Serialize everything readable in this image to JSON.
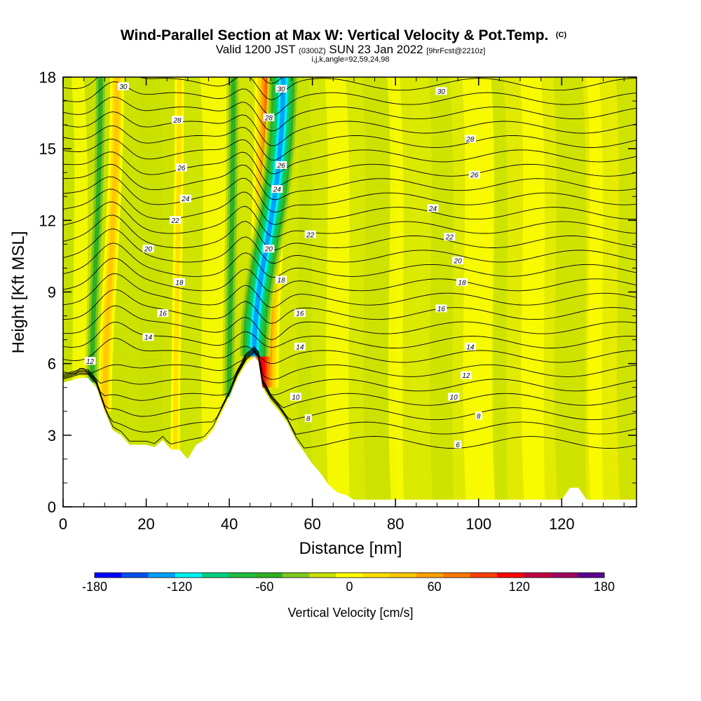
{
  "title": {
    "main": "Wind-Parallel Section at Max W: Vertical Velocity & Pot.Temp.",
    "copyright": "(C)",
    "sub_pre": "Valid 1200 JST ",
    "sub_zulu": "(0300Z)",
    "sub_mid": " SUN 23 Jan 2022 ",
    "sub_fcst": "[9hrFcst@2210z]",
    "indices": "i,j,k,angle=92,59,24,98"
  },
  "chart_data": {
    "type": "heatmap",
    "xlabel": "Distance [nm]",
    "ylabel": "Height [Kft MSL]",
    "xlim": [
      0,
      138
    ],
    "ylim": [
      0,
      18
    ],
    "x_ticks": [
      0,
      20,
      40,
      60,
      80,
      100,
      120
    ],
    "x_tick_labels": [
      "0",
      "20",
      "40",
      "60",
      "80",
      "100",
      "120"
    ],
    "y_ticks": [
      0,
      3,
      6,
      9,
      12,
      15,
      18
    ],
    "y_tick_labels": [
      "0",
      "3",
      "6",
      "9",
      "12",
      "15",
      "18"
    ],
    "colorbar": {
      "title": "Vertical Velocity [cm/s]",
      "min": -180,
      "max": 180,
      "step": 20,
      "labels": [
        "-180",
        "-120",
        "-60",
        "0",
        "60",
        "120",
        "180"
      ],
      "label_values": [
        -180,
        -120,
        -60,
        0,
        60,
        120,
        180
      ],
      "colors": [
        "#0000ff",
        "#0050f0",
        "#00a0ff",
        "#00f0f0",
        "#00d080",
        "#20c040",
        "#30b020",
        "#80c820",
        "#c8e000",
        "#ffff00",
        "#ffe000",
        "#ffc800",
        "#ffa000",
        "#ff7800",
        "#ff4000",
        "#ff0000",
        "#c00040",
        "#a00060",
        "#5a0090"
      ]
    },
    "terrain_profile": {
      "distance_nm": [
        0,
        2,
        4,
        6,
        8,
        10,
        12,
        14,
        16,
        18,
        20,
        22,
        24,
        26,
        28,
        30,
        32,
        34,
        36,
        38,
        40,
        42,
        44,
        46,
        47,
        48,
        50,
        52,
        54,
        56,
        58,
        60,
        62,
        64,
        66,
        68,
        70,
        80,
        100,
        110,
        120,
        122,
        124,
        126,
        128,
        130,
        132,
        138
      ],
      "height_kft": [
        5.2,
        5.3,
        5.4,
        5.4,
        5.0,
        4.0,
        3.2,
        3.0,
        2.6,
        2.6,
        2.6,
        2.5,
        2.8,
        2.4,
        2.4,
        2.0,
        2.6,
        2.8,
        3.2,
        3.9,
        4.6,
        5.4,
        6.0,
        6.3,
        6.1,
        5.0,
        4.4,
        4.0,
        3.5,
        2.8,
        2.3,
        1.8,
        1.4,
        0.9,
        0.6,
        0.5,
        0.3,
        0.3,
        0.3,
        0.3,
        0.3,
        0.8,
        0.8,
        0.3,
        0.3,
        0.3,
        0.3,
        0.3
      ]
    },
    "vertical_velocity_features": [
      {
        "center_nm": 10,
        "top_center_nm": 13,
        "sign": "updraft",
        "peak_cms": 60
      },
      {
        "center_nm": 7,
        "top_center_nm": 9,
        "sign": "downdraft",
        "peak_cms": -60
      },
      {
        "center_nm": 27,
        "top_center_nm": 28,
        "sign": "updraft",
        "peak_cms": 40
      },
      {
        "center_nm": 40,
        "top_center_nm": 41,
        "sign": "downdraft",
        "peak_cms": -60
      },
      {
        "center_nm": 48,
        "top_center_nm": 50,
        "sign": "updraft",
        "peak_cms": 140
      },
      {
        "center_nm": 46,
        "top_center_nm": 53,
        "sign": "downdraft",
        "peak_cms": -140
      }
    ],
    "theta_contour_labels": [
      {
        "value": "12",
        "x_nm": 6.5,
        "height_kft": 6.1
      },
      {
        "value": "14",
        "x_nm": 20.5,
        "height_kft": 7.1
      },
      {
        "value": "16",
        "x_nm": 24,
        "height_kft": 8.1
      },
      {
        "value": "18",
        "x_nm": 28,
        "height_kft": 9.4
      },
      {
        "value": "20",
        "x_nm": 20.5,
        "height_kft": 10.8
      },
      {
        "value": "22",
        "x_nm": 27,
        "height_kft": 12.0
      },
      {
        "value": "24",
        "x_nm": 29.5,
        "height_kft": 12.9
      },
      {
        "value": "26",
        "x_nm": 28.5,
        "height_kft": 14.2
      },
      {
        "value": "28",
        "x_nm": 27.5,
        "height_kft": 16.2
      },
      {
        "value": "30",
        "x_nm": 14.5,
        "height_kft": 17.6
      },
      {
        "value": "30",
        "x_nm": 52.5,
        "height_kft": 17.5
      },
      {
        "value": "28",
        "x_nm": 49.5,
        "height_kft": 16.3
      },
      {
        "value": "26",
        "x_nm": 52.5,
        "height_kft": 14.3
      },
      {
        "value": "24",
        "x_nm": 51.5,
        "height_kft": 13.3
      },
      {
        "value": "20",
        "x_nm": 49.5,
        "height_kft": 10.8
      },
      {
        "value": "18",
        "x_nm": 52.5,
        "height_kft": 9.5
      },
      {
        "value": "22",
        "x_nm": 59.5,
        "height_kft": 11.4
      },
      {
        "value": "16",
        "x_nm": 57,
        "height_kft": 8.1
      },
      {
        "value": "14",
        "x_nm": 57,
        "height_kft": 6.7
      },
      {
        "value": "10",
        "x_nm": 56,
        "height_kft": 4.6
      },
      {
        "value": "8",
        "x_nm": 59,
        "height_kft": 3.7
      },
      {
        "value": "30",
        "x_nm": 91,
        "height_kft": 17.4
      },
      {
        "value": "28",
        "x_nm": 98,
        "height_kft": 15.4
      },
      {
        "value": "26",
        "x_nm": 99,
        "height_kft": 13.9
      },
      {
        "value": "24",
        "x_nm": 89,
        "height_kft": 12.5
      },
      {
        "value": "22",
        "x_nm": 93,
        "height_kft": 11.3
      },
      {
        "value": "20",
        "x_nm": 95,
        "height_kft": 10.3
      },
      {
        "value": "18",
        "x_nm": 96,
        "height_kft": 9.4
      },
      {
        "value": "16",
        "x_nm": 91,
        "height_kft": 8.3
      },
      {
        "value": "14",
        "x_nm": 98,
        "height_kft": 6.7
      },
      {
        "value": "12",
        "x_nm": 97,
        "height_kft": 5.5
      },
      {
        "value": "10",
        "x_nm": 94,
        "height_kft": 4.6
      },
      {
        "value": "8",
        "x_nm": 100,
        "height_kft": 3.8
      },
      {
        "value": "6",
        "x_nm": 95,
        "height_kft": 2.6
      }
    ],
    "theta_contour_levels": [
      5,
      6,
      7,
      8,
      9,
      10,
      11,
      12,
      13,
      14,
      15,
      16,
      17,
      18,
      19,
      20,
      21,
      22,
      23,
      24,
      25,
      26,
      27,
      28,
      29,
      30,
      31
    ]
  }
}
